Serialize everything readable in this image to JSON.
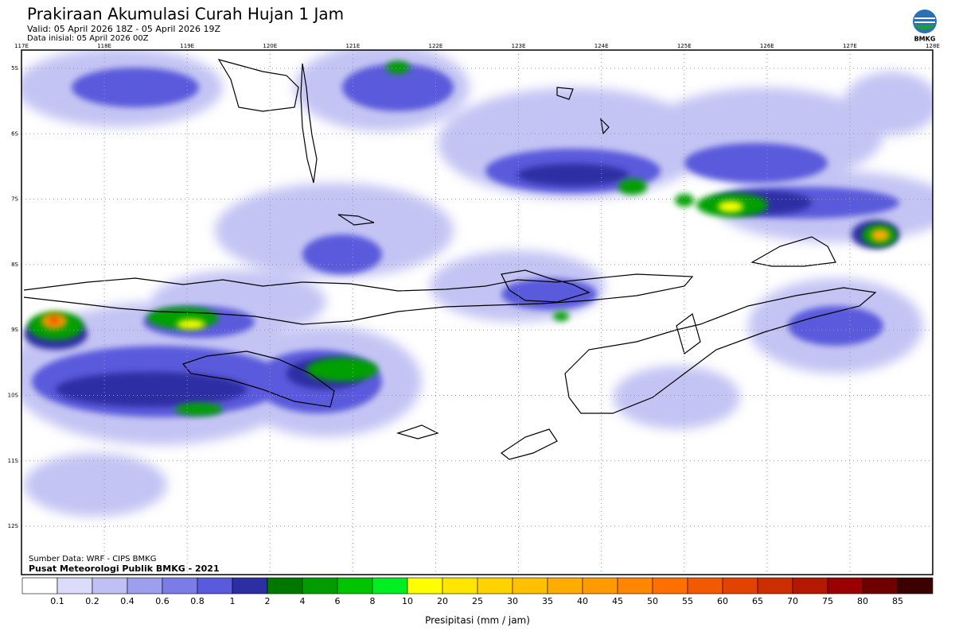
{
  "header": {
    "title": "Prakiraan Akumulasi Curah Hujan 1 Jam",
    "valid": "Valid: 05 April 2026 18Z - 05 April 2026 19Z",
    "initial": "Data inisial: 05 April 2026 00Z",
    "logo": "BMKG"
  },
  "map": {
    "lon_labels": [
      "117E",
      "118E",
      "119E",
      "120E",
      "121E",
      "122E",
      "123E",
      "124E",
      "125E",
      "126E",
      "127E",
      "128E"
    ],
    "lat_labels": [
      "5S",
      "6S",
      "7S",
      "8S",
      "9S",
      "10S",
      "11S",
      "12S"
    ],
    "source": "Sumber Data: WRF - CIPS BMKG",
    "credit": "Pusat Meteorologi Publik BMKG - 2021"
  },
  "colorbar": {
    "labels": [
      "0.1",
      "0.2",
      "0.4",
      "0.6",
      "0.8",
      "1",
      "2",
      "4",
      "6",
      "8",
      "10",
      "20",
      "25",
      "30",
      "35",
      "40",
      "45",
      "50",
      "55",
      "60",
      "65",
      "70",
      "75",
      "80",
      "85"
    ],
    "colors": [
      "#ffffff",
      "#dcdcfa",
      "#c0c0f4",
      "#9e9eee",
      "#7c7ce8",
      "#5a5adc",
      "#2e2ea4",
      "#007800",
      "#009c00",
      "#00c400",
      "#00ee22",
      "#ffff00",
      "#ffe600",
      "#ffd200",
      "#ffc000",
      "#ffac00",
      "#ff9a00",
      "#ff8600",
      "#ff7000",
      "#f25a00",
      "#e24400",
      "#cc2e00",
      "#b41800",
      "#9a0000",
      "#6e0000",
      "#3c0000"
    ],
    "title": "Presipitasi (mm / jam)"
  }
}
